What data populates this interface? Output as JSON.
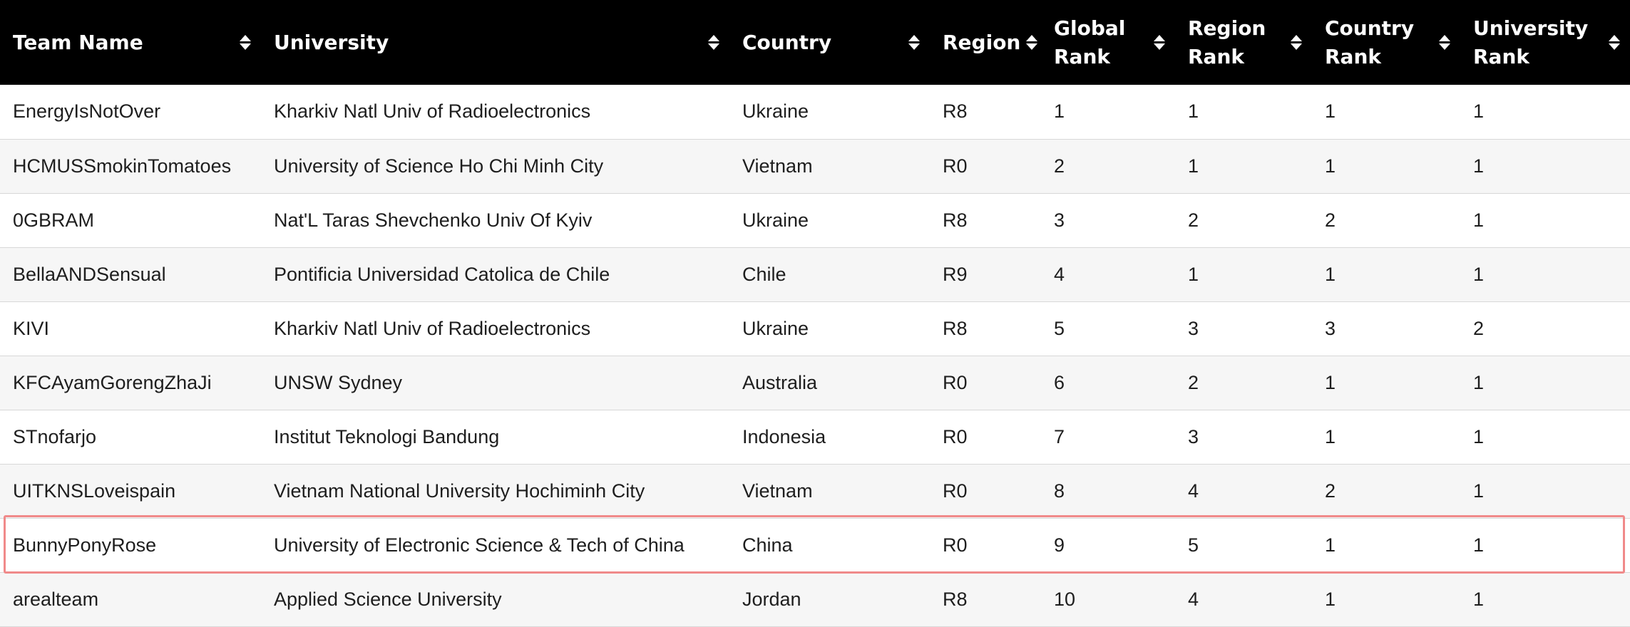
{
  "table": {
    "columns": [
      {
        "key": "team",
        "label": "Team Name"
      },
      {
        "key": "university",
        "label": "University"
      },
      {
        "key": "country",
        "label": "Country"
      },
      {
        "key": "region",
        "label": "Region"
      },
      {
        "key": "global_rank",
        "label": "Global\nRank"
      },
      {
        "key": "region_rank",
        "label": "Region\nRank"
      },
      {
        "key": "country_rank",
        "label": "Country\nRank"
      },
      {
        "key": "university_rank",
        "label": "University\nRank"
      }
    ],
    "rows": [
      {
        "team": "EnergyIsNotOver",
        "university": "Kharkiv Natl Univ of Radioelectronics",
        "country": "Ukraine",
        "region": "R8",
        "global_rank": "1",
        "region_rank": "1",
        "country_rank": "1",
        "university_rank": "1"
      },
      {
        "team": "HCMUSSmokinTomatoes",
        "university": "University of Science Ho Chi Minh City",
        "country": "Vietnam",
        "region": "R0",
        "global_rank": "2",
        "region_rank": "1",
        "country_rank": "1",
        "university_rank": "1"
      },
      {
        "team": "0GBRAM",
        "university": "Nat'L Taras Shevchenko Univ Of Kyiv",
        "country": "Ukraine",
        "region": "R8",
        "global_rank": "3",
        "region_rank": "2",
        "country_rank": "2",
        "university_rank": "1"
      },
      {
        "team": "BellaANDSensual",
        "university": "Pontificia Universidad Catolica de Chile",
        "country": "Chile",
        "region": "R9",
        "global_rank": "4",
        "region_rank": "1",
        "country_rank": "1",
        "university_rank": "1"
      },
      {
        "team": "KIVI",
        "university": "Kharkiv Natl Univ of Radioelectronics",
        "country": "Ukraine",
        "region": "R8",
        "global_rank": "5",
        "region_rank": "3",
        "country_rank": "3",
        "university_rank": "2"
      },
      {
        "team": "KFCAyamGorengZhaJi",
        "university": "UNSW Sydney",
        "country": "Australia",
        "region": "R0",
        "global_rank": "6",
        "region_rank": "2",
        "country_rank": "1",
        "university_rank": "1"
      },
      {
        "team": "STnofarjo",
        "university": "Institut Teknologi Bandung",
        "country": "Indonesia",
        "region": "R0",
        "global_rank": "7",
        "region_rank": "3",
        "country_rank": "1",
        "university_rank": "1"
      },
      {
        "team": "UITKNSLoveispain",
        "university": "Vietnam National University Hochiminh City",
        "country": "Vietnam",
        "region": "R0",
        "global_rank": "8",
        "region_rank": "4",
        "country_rank": "2",
        "university_rank": "1"
      },
      {
        "team": "BunnyPonyRose",
        "university": "University of Electronic Science & Tech of China",
        "country": "China",
        "region": "R0",
        "global_rank": "9",
        "region_rank": "5",
        "country_rank": "1",
        "university_rank": "1"
      },
      {
        "team": "arealteam",
        "university": "Applied Science University",
        "country": "Jordan",
        "region": "R8",
        "global_rank": "10",
        "region_rank": "4",
        "country_rank": "1",
        "university_rank": "1"
      }
    ],
    "highlighted_row_index": 8
  },
  "colors": {
    "header_bg": "#000000",
    "header_text": "#ffffff",
    "row_alt_bg": "#f6f6f6",
    "highlight_border": "#f08a8a"
  },
  "icons": {
    "sort": "sort-up-down-icon"
  }
}
